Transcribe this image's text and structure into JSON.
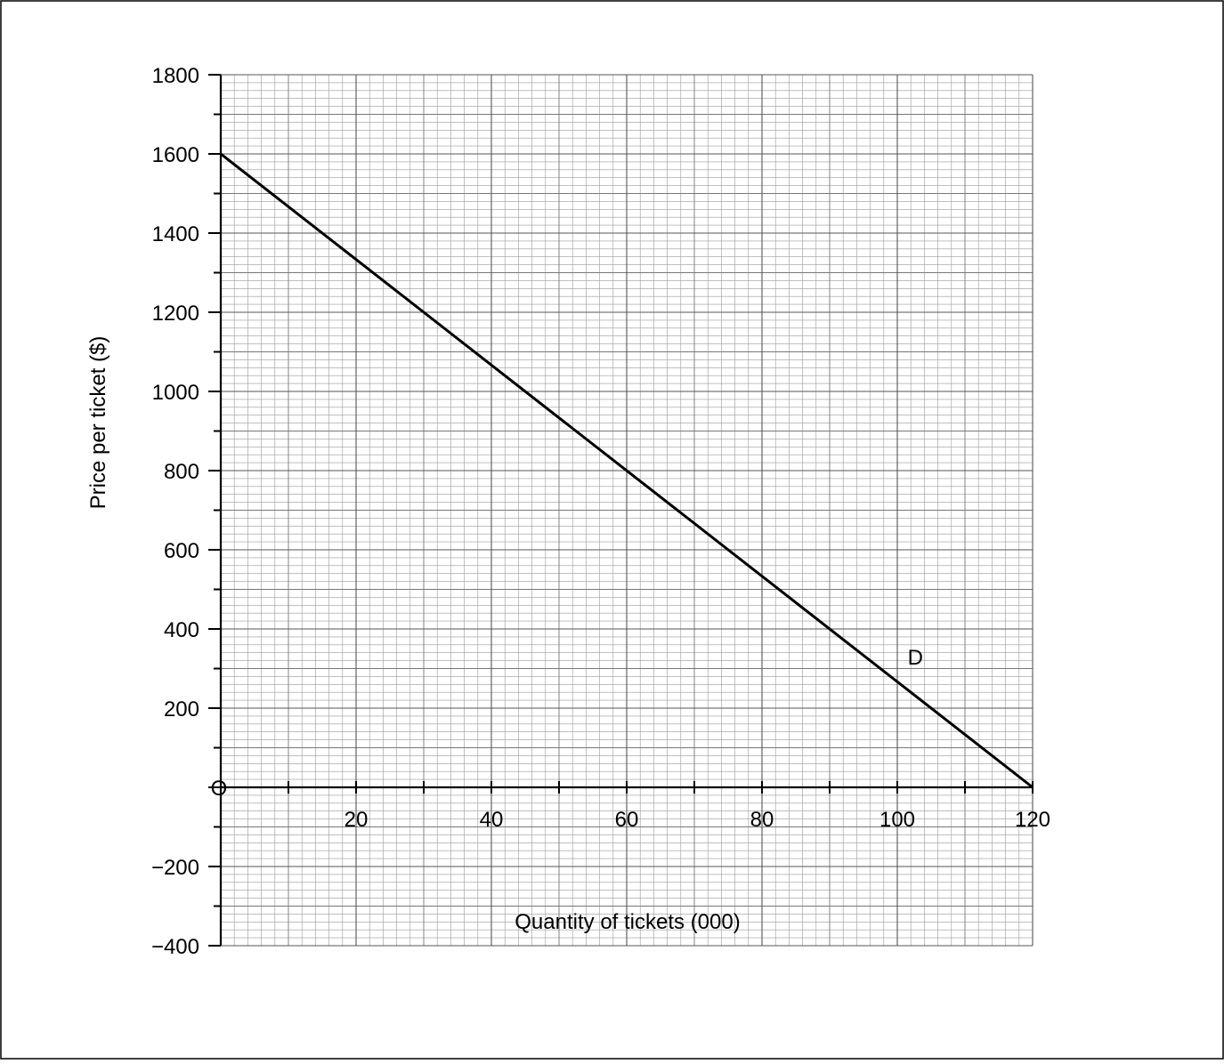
{
  "chart_data": {
    "type": "line",
    "title": "",
    "xlabel": "Quantity of tickets (000)",
    "ylabel": "Price per ticket ($)",
    "xlim": [
      0,
      120
    ],
    "ylim": [
      -400,
      1800
    ],
    "x_ticks": [
      "20",
      "40",
      "60",
      "80",
      "100",
      "120"
    ],
    "y_ticks": [
      "1800",
      "1600",
      "1400",
      "1200",
      "1000",
      "800",
      "600",
      "400",
      "200",
      "−200",
      "−400"
    ],
    "origin_label": "O",
    "grid": true,
    "series": [
      {
        "name": "D",
        "x": [
          0,
          120
        ],
        "y": [
          1600,
          0
        ]
      }
    ]
  }
}
